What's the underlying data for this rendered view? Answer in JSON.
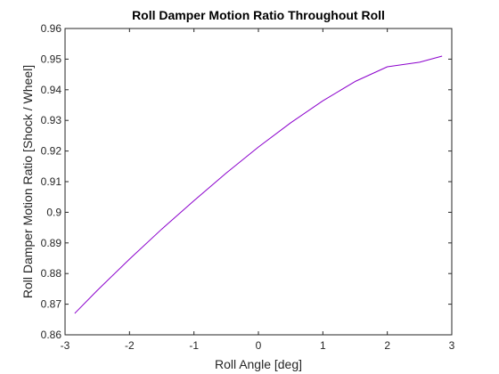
{
  "chart_data": {
    "type": "line",
    "title": "Roll Damper Motion Ratio Throughout Roll",
    "xlabel": "Roll Angle [deg]",
    "ylabel": "Roll Damper Motion Ratio [Shock / Wheel]",
    "xlim": [
      -3,
      3
    ],
    "ylim": [
      0.86,
      0.96
    ],
    "xticks": [
      "-3",
      "-2",
      "-1",
      "0",
      "1",
      "2",
      "3"
    ],
    "yticks": [
      "0.86",
      "0.87",
      "0.88",
      "0.89",
      "0.9",
      "0.91",
      "0.92",
      "0.93",
      "0.94",
      "0.95",
      "0.96"
    ],
    "grid": false,
    "series": [
      {
        "color": "#8b00cc",
        "x": [
          -2.85,
          -2.5,
          -2,
          -1.5,
          -1,
          -0.5,
          0,
          0.5,
          1,
          1.5,
          2,
          2.5,
          2.85
        ],
        "y": [
          0.867,
          0.8745,
          0.8847,
          0.8945,
          0.9038,
          0.9128,
          0.9213,
          0.9292,
          0.9364,
          0.9427,
          0.9475,
          0.949,
          0.951
        ]
      }
    ]
  }
}
